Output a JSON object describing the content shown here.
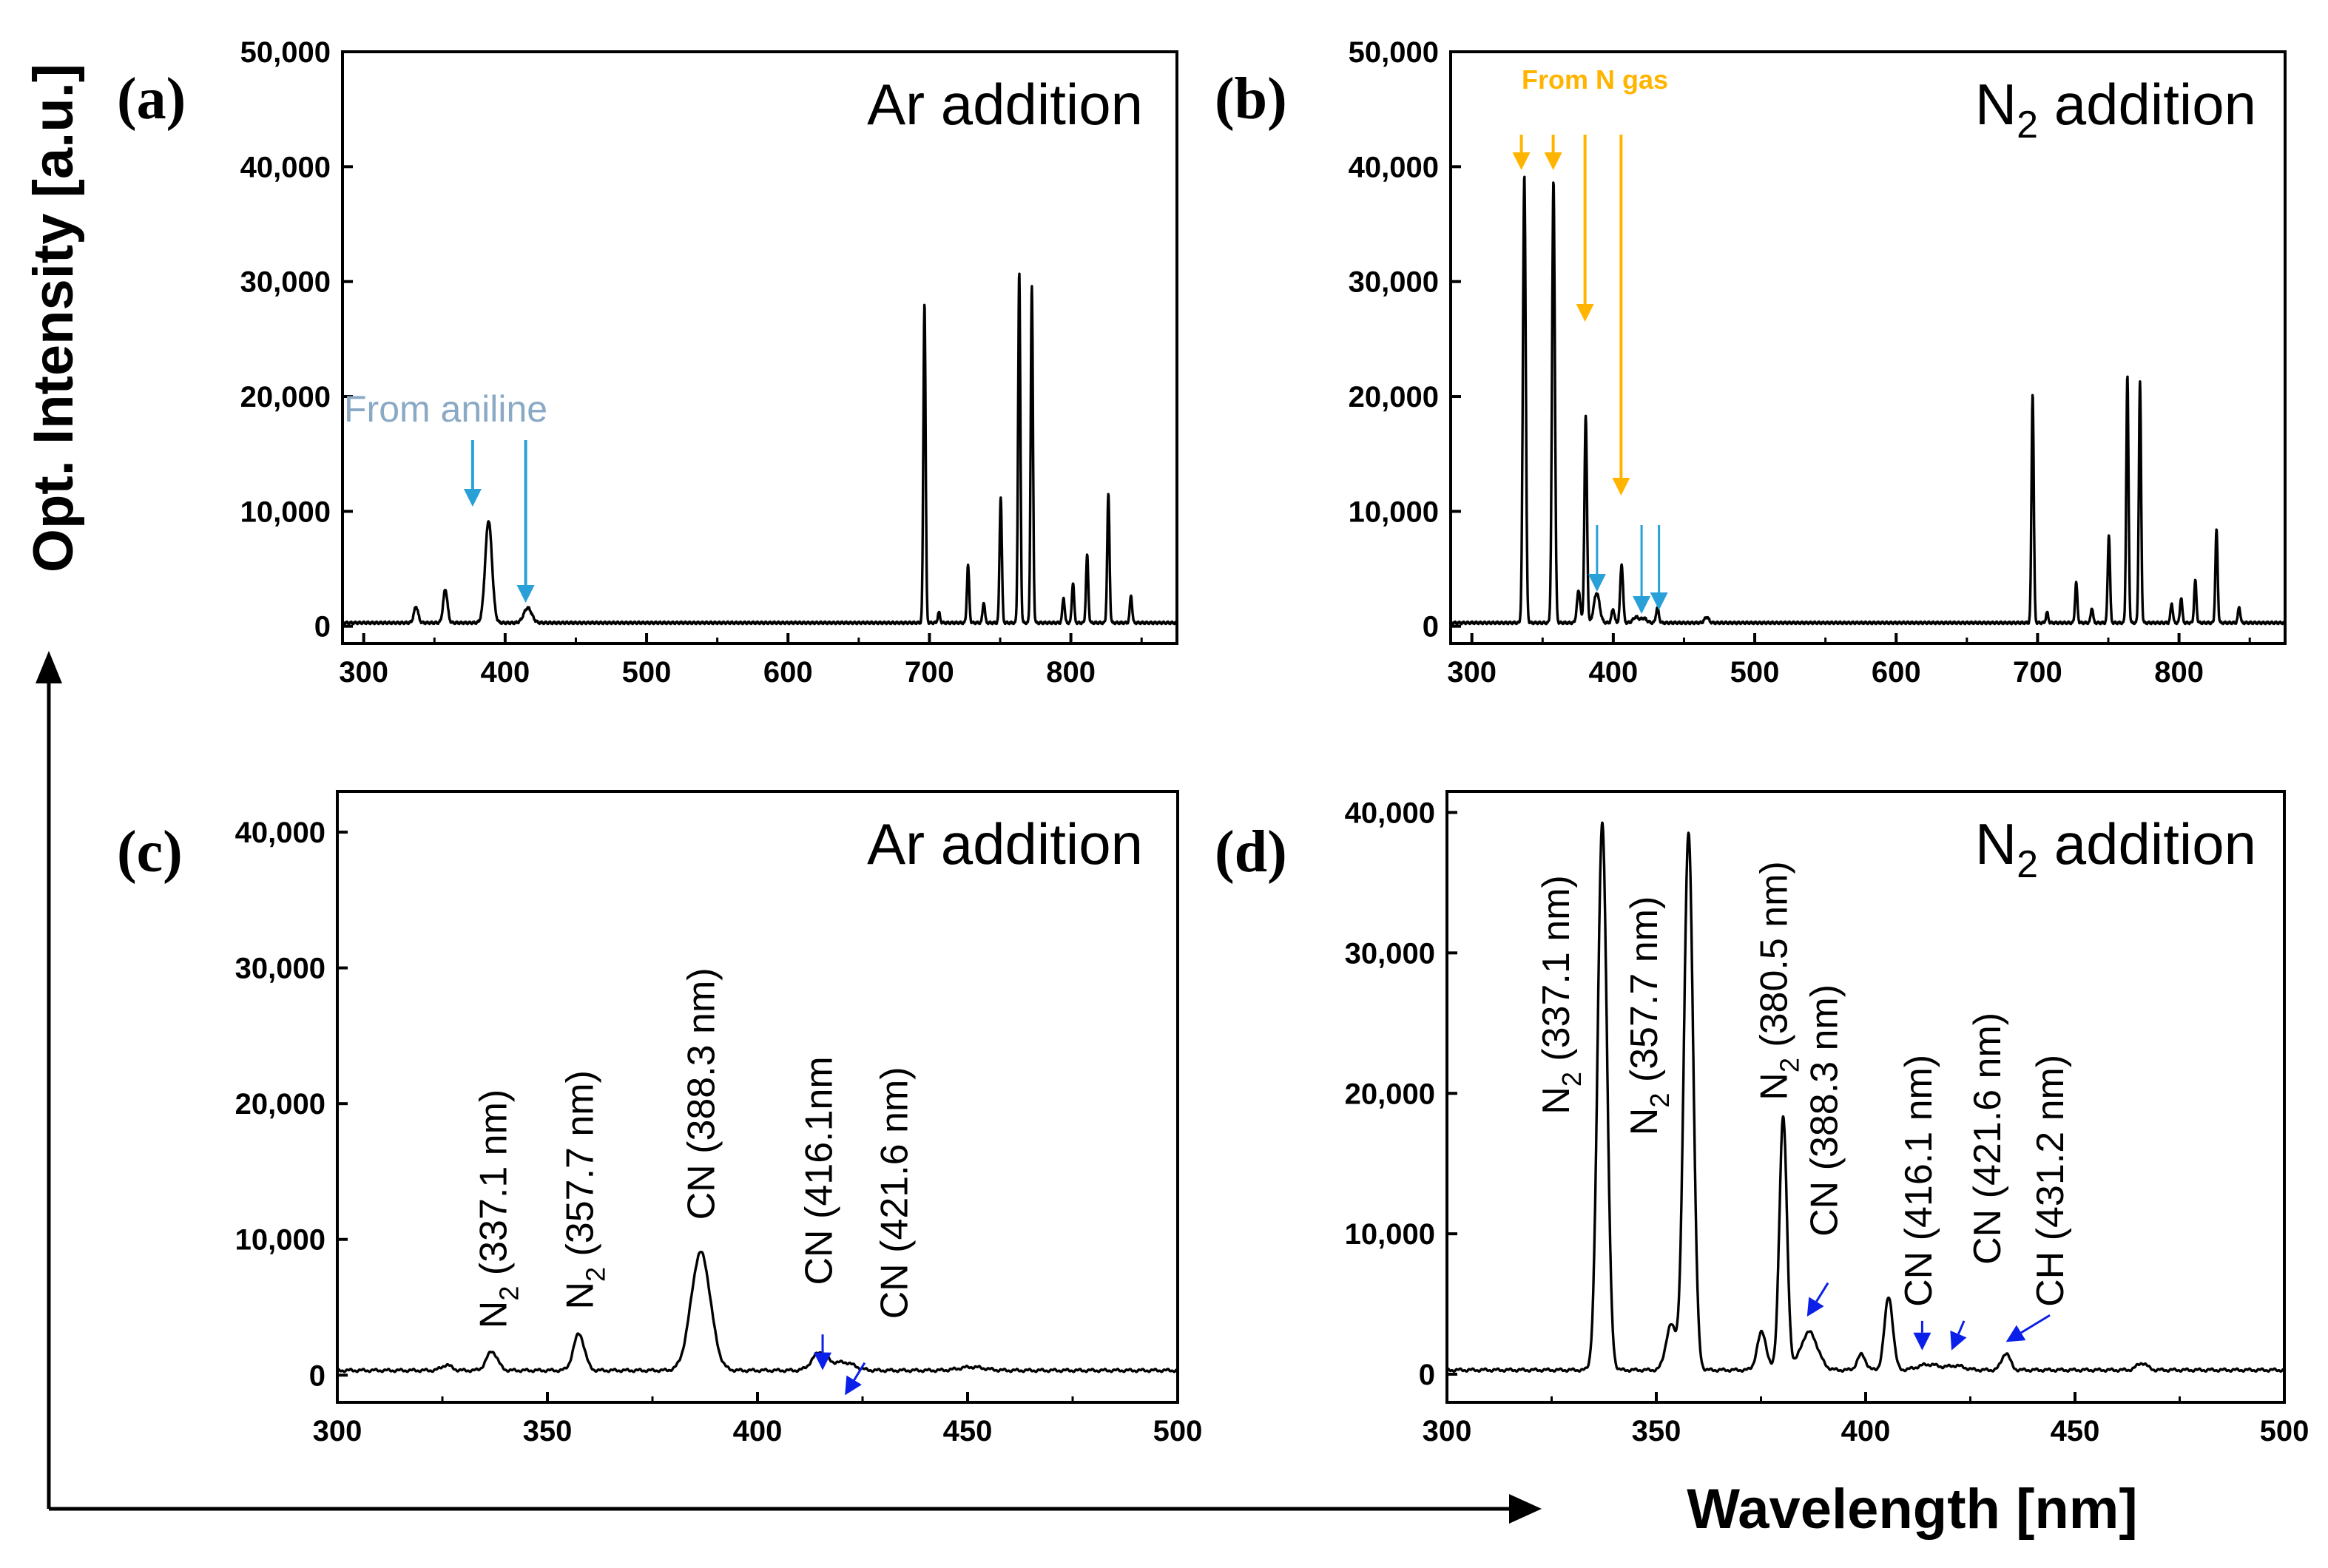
{
  "figure": {
    "y_axis_label": "Opt. Intensity [a.u.]",
    "x_axis_label": "Wavelength [nm]"
  },
  "colors": {
    "line": "#000000",
    "aniline_arrow": "#29a0d8",
    "aniline_text": "#8aa9c4",
    "n_gas": "#ffb400",
    "peak_arrow": "#0a20e8"
  },
  "chart_data": [
    {
      "id": "a",
      "type": "line",
      "letter": "(a)",
      "title": "Ar addition",
      "xlabel": "Wavelength [nm]",
      "ylabel": "Opt. Intensity [a.u.]",
      "xlim": [
        285,
        875
      ],
      "ylim": [
        -1500,
        50000
      ],
      "xticks": [
        300,
        400,
        500,
        600,
        700,
        800
      ],
      "yticks": [
        0,
        10000,
        20000,
        30000,
        40000,
        50000
      ],
      "ytick_labels": [
        "0",
        "10,000",
        "20,000",
        "30,000",
        "40,000",
        "50,000"
      ],
      "baseline": 300,
      "peaks": [
        {
          "x": 337,
          "y": 1400,
          "w": 1.5
        },
        {
          "x": 357.7,
          "y": 2900,
          "w": 1.5
        },
        {
          "x": 388.3,
          "y": 8900,
          "w": 2.4
        },
        {
          "x": 416,
          "y": 1300,
          "w": 2.8
        },
        {
          "x": 696.5,
          "y": 27900,
          "w": 0.8
        },
        {
          "x": 706.7,
          "y": 900,
          "w": 0.8
        },
        {
          "x": 727.3,
          "y": 5000,
          "w": 0.8
        },
        {
          "x": 738.4,
          "y": 1800,
          "w": 0.8
        },
        {
          "x": 750.4,
          "y": 11000,
          "w": 0.8
        },
        {
          "x": 763.5,
          "y": 30500,
          "w": 0.8
        },
        {
          "x": 772.4,
          "y": 29300,
          "w": 0.8
        },
        {
          "x": 794.8,
          "y": 2200,
          "w": 0.8
        },
        {
          "x": 801.5,
          "y": 3500,
          "w": 0.8
        },
        {
          "x": 811.5,
          "y": 5900,
          "w": 0.8
        },
        {
          "x": 826.5,
          "y": 11200,
          "w": 0.8
        },
        {
          "x": 842.5,
          "y": 2400,
          "w": 0.8
        }
      ],
      "annotation": {
        "text": "From aniline",
        "targets": [
          388.3,
          416.1
        ]
      }
    },
    {
      "id": "b",
      "type": "line",
      "letter": "(b)",
      "title": "N",
      "title_sub": "2",
      "title_rest": " addition",
      "xlabel": "Wavelength [nm]",
      "ylabel": "Opt. Intensity [a.u.]",
      "xlim": [
        285,
        875
      ],
      "ylim": [
        -1500,
        50000
      ],
      "xticks": [
        300,
        400,
        500,
        600,
        700,
        800
      ],
      "yticks": [
        0,
        10000,
        20000,
        30000,
        40000,
        50000
      ],
      "ytick_labels": [
        "0",
        "10,000",
        "20,000",
        "30,000",
        "40,000",
        "50,000"
      ],
      "baseline": 300,
      "peaks": [
        {
          "x": 337.1,
          "y": 39000,
          "w": 1.0
        },
        {
          "x": 357.7,
          "y": 38500,
          "w": 1.0
        },
        {
          "x": 375.5,
          "y": 2800,
          "w": 1.2
        },
        {
          "x": 380.5,
          "y": 18000,
          "w": 0.9
        },
        {
          "x": 388.3,
          "y": 2600,
          "w": 2.0
        },
        {
          "x": 399.8,
          "y": 1200,
          "w": 1.0
        },
        {
          "x": 405.9,
          "y": 5100,
          "w": 1.0
        },
        {
          "x": 416,
          "y": 500,
          "w": 2.0
        },
        {
          "x": 421.6,
          "y": 400,
          "w": 2.0
        },
        {
          "x": 431.2,
          "y": 1300,
          "w": 1.0
        },
        {
          "x": 466,
          "y": 500,
          "w": 1.5
        },
        {
          "x": 696.5,
          "y": 20000,
          "w": 0.8
        },
        {
          "x": 706.7,
          "y": 900,
          "w": 0.8
        },
        {
          "x": 727.3,
          "y": 3500,
          "w": 0.8
        },
        {
          "x": 738.4,
          "y": 1300,
          "w": 0.8
        },
        {
          "x": 750.4,
          "y": 7700,
          "w": 0.8
        },
        {
          "x": 763.5,
          "y": 21500,
          "w": 0.8
        },
        {
          "x": 772.4,
          "y": 21000,
          "w": 0.8
        },
        {
          "x": 794.8,
          "y": 1700,
          "w": 0.8
        },
        {
          "x": 801.5,
          "y": 2200,
          "w": 0.8
        },
        {
          "x": 811.5,
          "y": 3700,
          "w": 0.8
        },
        {
          "x": 826.5,
          "y": 8100,
          "w": 0.8
        },
        {
          "x": 842.5,
          "y": 1400,
          "w": 0.8
        }
      ],
      "annotation": {
        "text": "From N gas",
        "targets": [
          337.1,
          357.7,
          380.5,
          405.9
        ]
      },
      "blue_targets": [
        388.3,
        416.1,
        431.2
      ]
    },
    {
      "id": "c",
      "type": "line",
      "letter": "(c)",
      "title": "Ar addition",
      "xlabel": "Wavelength [nm]",
      "ylabel": "Opt. Intensity [a.u.]",
      "xlim": [
        300,
        500
      ],
      "ylim": [
        -2000,
        43000
      ],
      "xticks": [
        300,
        350,
        400,
        450,
        500
      ],
      "yticks": [
        0,
        10000,
        20000,
        30000,
        40000
      ],
      "ytick_labels": [
        "0",
        "10,000",
        "20,000",
        "30,000",
        "40,000"
      ],
      "baseline": 350,
      "peaks": [
        {
          "x": 326,
          "y": 400,
          "w": 1.2
        },
        {
          "x": 336.8,
          "y": 1400,
          "w": 1.3
        },
        {
          "x": 357.5,
          "y": 2700,
          "w": 1.3
        },
        {
          "x": 386.5,
          "y": 8700,
          "w": 2.3
        },
        {
          "x": 414.8,
          "y": 1300,
          "w": 1.8
        },
        {
          "x": 420.5,
          "y": 600,
          "w": 2.5
        },
        {
          "x": 451,
          "y": 250,
          "w": 3.0
        }
      ],
      "labels": [
        {
          "main": "N",
          "sub": "2",
          "rest": " (337.1 nm)",
          "x": 337.1,
          "y": 1800
        },
        {
          "main": "N",
          "sub": "2",
          "rest": " (357.7 nm)",
          "x": 357.7,
          "y": 3200
        },
        {
          "main": "CN (388.3 nm)",
          "x": 386.5,
          "y": 9800
        },
        {
          "main": "CN (416.1nm",
          "x": 414.5,
          "y": 5000
        },
        {
          "main": "CN (421.6 nm)",
          "x": 432.5,
          "y": 2500
        }
      ],
      "arrows": [
        416.1,
        421.6
      ]
    },
    {
      "id": "d",
      "type": "line",
      "letter": "(d)",
      "title": "N",
      "title_sub": "2",
      "title_rest": " addition",
      "xlabel": "Wavelength [nm]",
      "ylabel": "Opt. Intensity [a.u.]",
      "xlim": [
        300,
        500
      ],
      "ylim": [
        -2000,
        41500
      ],
      "xticks": [
        300,
        350,
        400,
        450,
        500
      ],
      "yticks": [
        0,
        10000,
        20000,
        30000,
        40000
      ],
      "ytick_labels": [
        "0",
        "10,000",
        "20,000",
        "30,000",
        "40,000"
      ],
      "baseline": 300,
      "peaks": [
        {
          "x": 337.1,
          "y": 39000,
          "w": 1.1
        },
        {
          "x": 357.7,
          "y": 38300,
          "w": 1.1
        },
        {
          "x": 353.5,
          "y": 3200,
          "w": 1.2
        },
        {
          "x": 375.2,
          "y": 2700,
          "w": 1.1
        },
        {
          "x": 380.3,
          "y": 18000,
          "w": 0.9
        },
        {
          "x": 386.5,
          "y": 2700,
          "w": 2.0
        },
        {
          "x": 399,
          "y": 1100,
          "w": 1.0
        },
        {
          "x": 405.5,
          "y": 5200,
          "w": 1.0
        },
        {
          "x": 415,
          "y": 400,
          "w": 2.5
        },
        {
          "x": 421.6,
          "y": 300,
          "w": 2.0
        },
        {
          "x": 433.5,
          "y": 1200,
          "w": 1.0
        },
        {
          "x": 466,
          "y": 500,
          "w": 1.2
        }
      ],
      "labels": [
        {
          "main": "N",
          "sub": "2",
          "rest": " (337.1 nm)",
          "x": 326,
          "y": 18500
        },
        {
          "main": "N",
          "sub": "2",
          "rest": " (357.7 nm)",
          "x": 347,
          "y": 17000
        },
        {
          "main": "N",
          "sub": "2",
          "rest": " (380.5 nm)",
          "x": 378,
          "y": 19500
        },
        {
          "main": "CN (388.3 nm)",
          "x": 390,
          "y": 9800
        },
        {
          "main": "CN (416.1 nm)",
          "x": 412.5,
          "y": 4800
        },
        {
          "main": "CN (421.6 nm)",
          "x": 429,
          "y": 7800
        },
        {
          "main": "CH (431.2 nm)",
          "x": 444,
          "y": 4800
        }
      ],
      "arrows": [
        388.3,
        416.1,
        421.6,
        431.2
      ]
    }
  ]
}
